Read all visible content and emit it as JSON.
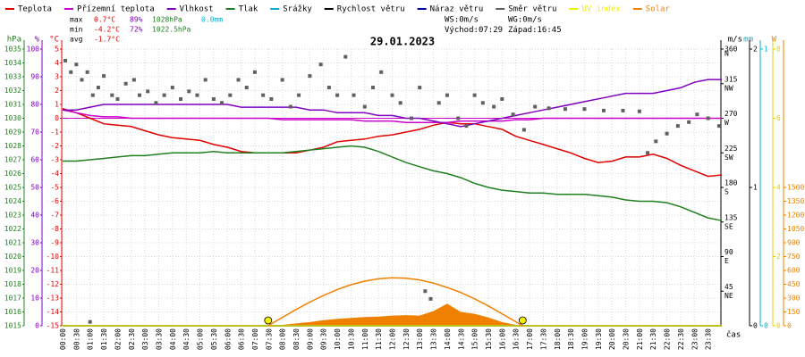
{
  "chart_data": {
    "type": "line",
    "title": "29.01.2023",
    "x_label": "čas",
    "xlim": [
      0,
      24
    ],
    "xticks": [
      {
        "value": 0,
        "label": "00:00"
      },
      {
        "value": 0.5,
        "label": "00:30"
      },
      {
        "value": 1,
        "label": "01:00"
      },
      {
        "value": 1.5,
        "label": "01:30"
      },
      {
        "value": 2,
        "label": "02:00"
      },
      {
        "value": 2.5,
        "label": "02:30"
      },
      {
        "value": 3,
        "label": "03:00"
      },
      {
        "value": 3.5,
        "label": "03:30"
      },
      {
        "value": 4,
        "label": "04:00"
      },
      {
        "value": 4.5,
        "label": "04:30"
      },
      {
        "value": 5,
        "label": "05:00"
      },
      {
        "value": 5.5,
        "label": "05:30"
      },
      {
        "value": 6,
        "label": "06:00"
      },
      {
        "value": 6.5,
        "label": "06:30"
      },
      {
        "value": 7,
        "label": "07:00"
      },
      {
        "value": 7.5,
        "label": "07:30"
      },
      {
        "value": 8,
        "label": "08:00"
      },
      {
        "value": 8.5,
        "label": "08:30"
      },
      {
        "value": 9,
        "label": "09:00"
      },
      {
        "value": 9.5,
        "label": "09:30"
      },
      {
        "value": 10,
        "label": "10:00"
      },
      {
        "value": 10.5,
        "label": "10:30"
      },
      {
        "value": 11,
        "label": "11:00"
      },
      {
        "value": 11.5,
        "label": "11:30"
      },
      {
        "value": 12,
        "label": "12:00"
      },
      {
        "value": 12.5,
        "label": "12:30"
      },
      {
        "value": 13,
        "label": "13:00"
      },
      {
        "value": 13.5,
        "label": "13:30"
      },
      {
        "value": 14,
        "label": "14:00"
      },
      {
        "value": 14.5,
        "label": "14:30"
      },
      {
        "value": 15,
        "label": "15:00"
      },
      {
        "value": 15.5,
        "label": "15:30"
      },
      {
        "value": 16,
        "label": "16:00"
      },
      {
        "value": 16.5,
        "label": "16:30"
      },
      {
        "value": 17,
        "label": "17:00"
      },
      {
        "value": 17.5,
        "label": "17:30"
      },
      {
        "value": 18,
        "label": "18:00"
      },
      {
        "value": 18.5,
        "label": "18:30"
      },
      {
        "value": 19,
        "label": "19:00"
      },
      {
        "value": 19.5,
        "label": "19:30"
      },
      {
        "value": 20,
        "label": "20:00"
      },
      {
        "value": 20.5,
        "label": "20:30"
      },
      {
        "value": 21,
        "label": "21:00"
      },
      {
        "value": 21.5,
        "label": "21:30"
      },
      {
        "value": 22,
        "label": "22:00"
      },
      {
        "value": 22.5,
        "label": "22:30"
      },
      {
        "value": 23,
        "label": "23:00"
      },
      {
        "value": 23.5,
        "label": "23:30"
      }
    ],
    "grid": true,
    "axes": [
      {
        "side": "left",
        "unit": "hPa",
        "color": "#208020",
        "lim": [
          1015,
          1035
        ],
        "ticks": [
          1015,
          1016,
          1017,
          1018,
          1019,
          1020,
          1021,
          1022,
          1023,
          1024,
          1025,
          1026,
          1027,
          1028,
          1029,
          1030,
          1031,
          1032,
          1033,
          1034,
          1035
        ]
      },
      {
        "side": "left",
        "unit": "%",
        "color": "#8000c0",
        "lim": [
          0,
          100
        ],
        "ticks": [
          0,
          10,
          20,
          30,
          40,
          50,
          60,
          70,
          80,
          90,
          100
        ]
      },
      {
        "side": "left",
        "unit": "°C",
        "color": "#e00000",
        "lim": [
          -15,
          5
        ],
        "ticks": [
          -15,
          -14,
          -13,
          -12,
          -11,
          -10,
          -9,
          -8,
          -7,
          -6,
          -5,
          -4,
          -3,
          -2,
          -1,
          0,
          1,
          2,
          3,
          4,
          5
        ],
        "grid": true
      },
      {
        "side": "right",
        "color": "#000000",
        "lim": [
          0,
          360
        ],
        "ticks": [
          {
            "value": 45,
            "label": "45",
            "dir": "NE"
          },
          {
            "value": 90,
            "label": "90",
            "dir": "E"
          },
          {
            "value": 135,
            "label": "135",
            "dir": "SE"
          },
          {
            "value": 180,
            "label": "180",
            "dir": "S"
          },
          {
            "value": 225,
            "label": "225",
            "dir": "SW"
          },
          {
            "value": 270,
            "label": "270",
            "dir": "W"
          },
          {
            "value": 315,
            "label": "315",
            "dir": "NW"
          },
          {
            "value": 360,
            "label": "360",
            "dir": "N"
          }
        ]
      },
      {
        "side": "right",
        "unit": "m/s",
        "color": "#000000",
        "lim": [
          0,
          2
        ],
        "ticks": [
          0,
          1,
          2
        ]
      },
      {
        "side": "right",
        "unit": "mm",
        "color": "#00b0d0",
        "lim": [
          0,
          1
        ],
        "ticks": [
          0,
          1
        ]
      },
      {
        "side": "right",
        "color": "#e0d000",
        "lim": [
          0,
          8
        ],
        "ticks": [
          0,
          2,
          4,
          6,
          8
        ]
      },
      {
        "side": "right",
        "unit": "W",
        "color": "#f08000",
        "lim": [
          0,
          3000
        ],
        "ticks": [
          0,
          150,
          300,
          450,
          600,
          750,
          900,
          1050,
          1200,
          1350,
          1500
        ]
      }
    ],
    "series": [
      {
        "name": "Teplota",
        "color": "#e00000",
        "axis": 2,
        "type": "line",
        "x": [
          0,
          0.5,
          1,
          1.5,
          2,
          2.5,
          3,
          3.5,
          4,
          4.5,
          5,
          5.5,
          6,
          6.5,
          7,
          7.5,
          8,
          8.5,
          9,
          9.5,
          10,
          10.5,
          11,
          11.5,
          12,
          12.5,
          13,
          13.5,
          14,
          14.5,
          15,
          15.5,
          16,
          16.5,
          17,
          17.5,
          18,
          18.5,
          19,
          19.5,
          20,
          20.5,
          21,
          21.5,
          22,
          22.5,
          23,
          23.5,
          24
        ],
        "values": [
          0.7,
          0.4,
          0.0,
          -0.4,
          -0.5,
          -0.6,
          -0.9,
          -1.2,
          -1.4,
          -1.5,
          -1.6,
          -1.9,
          -2.1,
          -2.4,
          -2.5,
          -2.5,
          -2.5,
          -2.5,
          -2.3,
          -2.1,
          -1.7,
          -1.6,
          -1.5,
          -1.3,
          -1.2,
          -1.0,
          -0.8,
          -0.5,
          -0.3,
          -0.4,
          -0.4,
          -0.6,
          -0.8,
          -1.3,
          -1.6,
          -1.9,
          -2.2,
          -2.5,
          -2.9,
          -3.2,
          -3.1,
          -2.8,
          -2.8,
          -2.6,
          -2.9,
          -3.4,
          -3.8,
          -4.2,
          -4.1
        ]
      },
      {
        "name": "Přízemní teplota",
        "color": "#cc00cc",
        "axis": 2,
        "type": "line",
        "x": [
          0,
          0.5,
          1,
          1.5,
          2,
          2.5,
          3,
          3.5,
          4,
          4.5,
          5,
          5.5,
          6,
          6.5,
          7,
          7.5,
          8,
          8.5,
          9,
          9.5,
          10,
          10.5,
          11,
          11.5,
          12,
          12.5,
          13,
          13.5,
          14,
          14.5,
          15,
          15.5,
          16,
          16.5,
          17,
          17.5,
          18,
          18.5,
          19,
          19.5,
          20,
          20.5,
          21,
          21.5,
          22,
          22.5,
          23,
          23.5,
          24
        ],
        "values": [
          0.6,
          0.4,
          0.2,
          0.1,
          0.1,
          0.0,
          0.0,
          0.0,
          0.0,
          0.0,
          0.0,
          0.0,
          0.0,
          0.0,
          0.0,
          0.0,
          -0.1,
          -0.1,
          -0.1,
          -0.1,
          -0.1,
          -0.1,
          -0.2,
          -0.2,
          -0.2,
          -0.3,
          -0.3,
          -0.3,
          -0.3,
          -0.2,
          -0.2,
          -0.2,
          -0.2,
          -0.1,
          -0.1,
          0,
          0,
          0,
          0,
          0,
          0,
          0,
          0,
          0,
          0,
          0,
          0,
          0,
          0
        ]
      },
      {
        "name": "Vlhkost",
        "color": "#8000c0",
        "axis": 1,
        "type": "line",
        "x": [
          0,
          0.5,
          1,
          1.5,
          2,
          2.5,
          3,
          3.5,
          4,
          4.5,
          5,
          5.5,
          6,
          6.5,
          7,
          7.5,
          8,
          8.5,
          9,
          9.5,
          10,
          10.5,
          11,
          11.5,
          12,
          12.5,
          13,
          13.5,
          14,
          14.5,
          15,
          15.5,
          16,
          16.5,
          17,
          17.5,
          18,
          18.5,
          19,
          19.5,
          20,
          20.5,
          21,
          21.5,
          22,
          22.5,
          23,
          23.5,
          24
        ],
        "values": [
          78,
          78,
          79,
          80,
          80,
          80,
          80,
          80,
          80,
          80,
          80,
          80,
          80,
          79,
          79,
          79,
          79,
          79,
          78,
          78,
          77,
          77,
          77,
          76,
          76,
          75,
          75,
          74,
          73,
          72,
          73,
          74,
          75,
          76,
          77,
          78,
          79,
          80,
          81,
          82,
          83,
          84,
          84,
          84,
          85,
          86,
          88,
          89,
          89
        ]
      },
      {
        "name": "Tlak",
        "color": "#208020",
        "axis": 0,
        "type": "line",
        "x": [
          0,
          0.5,
          1,
          1.5,
          2,
          2.5,
          3,
          3.5,
          4,
          4.5,
          5,
          5.5,
          6,
          6.5,
          7,
          7.5,
          8,
          8.5,
          9,
          9.5,
          10,
          10.5,
          11,
          11.5,
          12,
          12.5,
          13,
          13.5,
          14,
          14.5,
          15,
          15.5,
          16,
          16.5,
          17,
          17.5,
          18,
          18.5,
          19,
          19.5,
          20,
          20.5,
          21,
          21.5,
          22,
          22.5,
          23,
          23.5,
          24
        ],
        "values": [
          1026.9,
          1026.9,
          1027.0,
          1027.1,
          1027.2,
          1027.3,
          1027.3,
          1027.4,
          1027.5,
          1027.5,
          1027.5,
          1027.6,
          1027.5,
          1027.5,
          1027.5,
          1027.5,
          1027.5,
          1027.6,
          1027.7,
          1027.8,
          1027.9,
          1028.0,
          1027.9,
          1027.6,
          1027.2,
          1026.8,
          1026.5,
          1026.2,
          1026.0,
          1025.7,
          1025.3,
          1025.0,
          1024.8,
          1024.7,
          1024.6,
          1024.6,
          1024.5,
          1024.5,
          1024.5,
          1024.4,
          1024.3,
          1024.1,
          1024.0,
          1024.0,
          1023.9,
          1023.6,
          1023.2,
          1022.8,
          1022.6
        ]
      },
      {
        "name": "Srážky",
        "color": "#00b0d0",
        "axis": 5,
        "type": "line",
        "x": [
          0,
          24
        ],
        "values": [
          0,
          0
        ]
      },
      {
        "name": "Rychlost větru",
        "color": "#000000",
        "axis": 4,
        "type": "line",
        "x": [
          0,
          24
        ],
        "values": [
          0,
          0
        ]
      },
      {
        "name": "Náraz větru",
        "color": "#0000a0",
        "axis": 4,
        "type": "line",
        "x": [
          0,
          24
        ],
        "values": [
          0,
          0
        ]
      },
      {
        "name": "Směr větru",
        "color": "#606060",
        "axis": 3,
        "type": "scatter",
        "x": [
          0.1,
          0.3,
          0.5,
          0.7,
          0.9,
          1.0,
          1.1,
          1.3,
          1.5,
          1.8,
          2.0,
          2.3,
          2.6,
          2.8,
          3.1,
          3.4,
          3.7,
          4.0,
          4.3,
          4.6,
          4.9,
          5.2,
          5.5,
          5.8,
          6.1,
          6.4,
          6.7,
          7.0,
          7.3,
          7.6,
          8.0,
          8.3,
          8.6,
          9.0,
          9.4,
          9.7,
          10.0,
          10.3,
          10.6,
          11.0,
          11.3,
          11.6,
          12.0,
          12.3,
          12.7,
          13.0,
          13.2,
          13.4,
          13.7,
          14.0,
          14.4,
          14.7,
          15.0,
          15.3,
          15.7,
          16.0,
          16.4,
          16.8,
          17.2,
          17.7,
          18.3,
          19.0,
          19.7,
          20.4,
          21.0,
          21.3,
          21.6,
          22.0,
          22.4,
          22.8,
          23.1,
          23.5,
          23.9
        ],
        "values": [
          345,
          330,
          340,
          320,
          330,
          5,
          300,
          310,
          325,
          300,
          295,
          315,
          320,
          300,
          305,
          290,
          300,
          310,
          295,
          305,
          300,
          320,
          295,
          290,
          300,
          320,
          310,
          330,
          300,
          295,
          320,
          285,
          300,
          325,
          340,
          310,
          300,
          350,
          300,
          285,
          310,
          330,
          300,
          290,
          270,
          310,
          45,
          35,
          290,
          300,
          270,
          260,
          300,
          290,
          285,
          295,
          275,
          255,
          285,
          283,
          282,
          282,
          280,
          280,
          279,
          225,
          240,
          250,
          260,
          265,
          275,
          270,
          260
        ]
      },
      {
        "name": "UV index",
        "color": "#f0f000",
        "axis": 6,
        "type": "line",
        "x": [
          0,
          24
        ],
        "values": [
          0,
          0
        ]
      },
      {
        "name": "Solar",
        "color": "#f08000",
        "axis": 7,
        "type": "area",
        "x": [
          7.5,
          8,
          8.5,
          9,
          9.5,
          10,
          10.5,
          11,
          11.5,
          12,
          12.5,
          13,
          13.5,
          14,
          14.5,
          15,
          15.5,
          16,
          16.5,
          16.75
        ],
        "values": [
          0,
          10,
          25,
          40,
          60,
          75,
          85,
          95,
          100,
          110,
          115,
          110,
          160,
          240,
          150,
          130,
          90,
          40,
          10,
          0
        ]
      },
      {
        "color": "#f08000",
        "axis": 7,
        "type": "line",
        "x": [
          7.5,
          8,
          8.5,
          9,
          9.5,
          10,
          10.5,
          11,
          11.5,
          12,
          12.5,
          13,
          13.5,
          14,
          14.5,
          15,
          15.5,
          16,
          16.5,
          16.75
        ],
        "values": [
          3,
          91,
          176,
          256,
          328,
          393,
          445,
          484,
          509,
          520,
          516,
          497,
          463,
          415,
          360,
          292,
          215,
          130,
          44,
          0
        ]
      }
    ],
    "stats": [
      {
        "label": "max",
        "values": [
          "0.7°C",
          "89%",
          "1028hPa",
          "0.0mm"
        ]
      },
      {
        "label": "min",
        "values": [
          "-4.2°C",
          "72%",
          "1022.5hPa"
        ]
      },
      {
        "label": "avg",
        "values": [
          "-1.7°C"
        ]
      }
    ],
    "info": {
      "ws": "WS:0m/s",
      "wg": "WG:0m/s",
      "sunrise_label": "Východ:",
      "sunrise": "07:29",
      "sunset_label": "Západ:",
      "sunset": "16:45"
    }
  }
}
